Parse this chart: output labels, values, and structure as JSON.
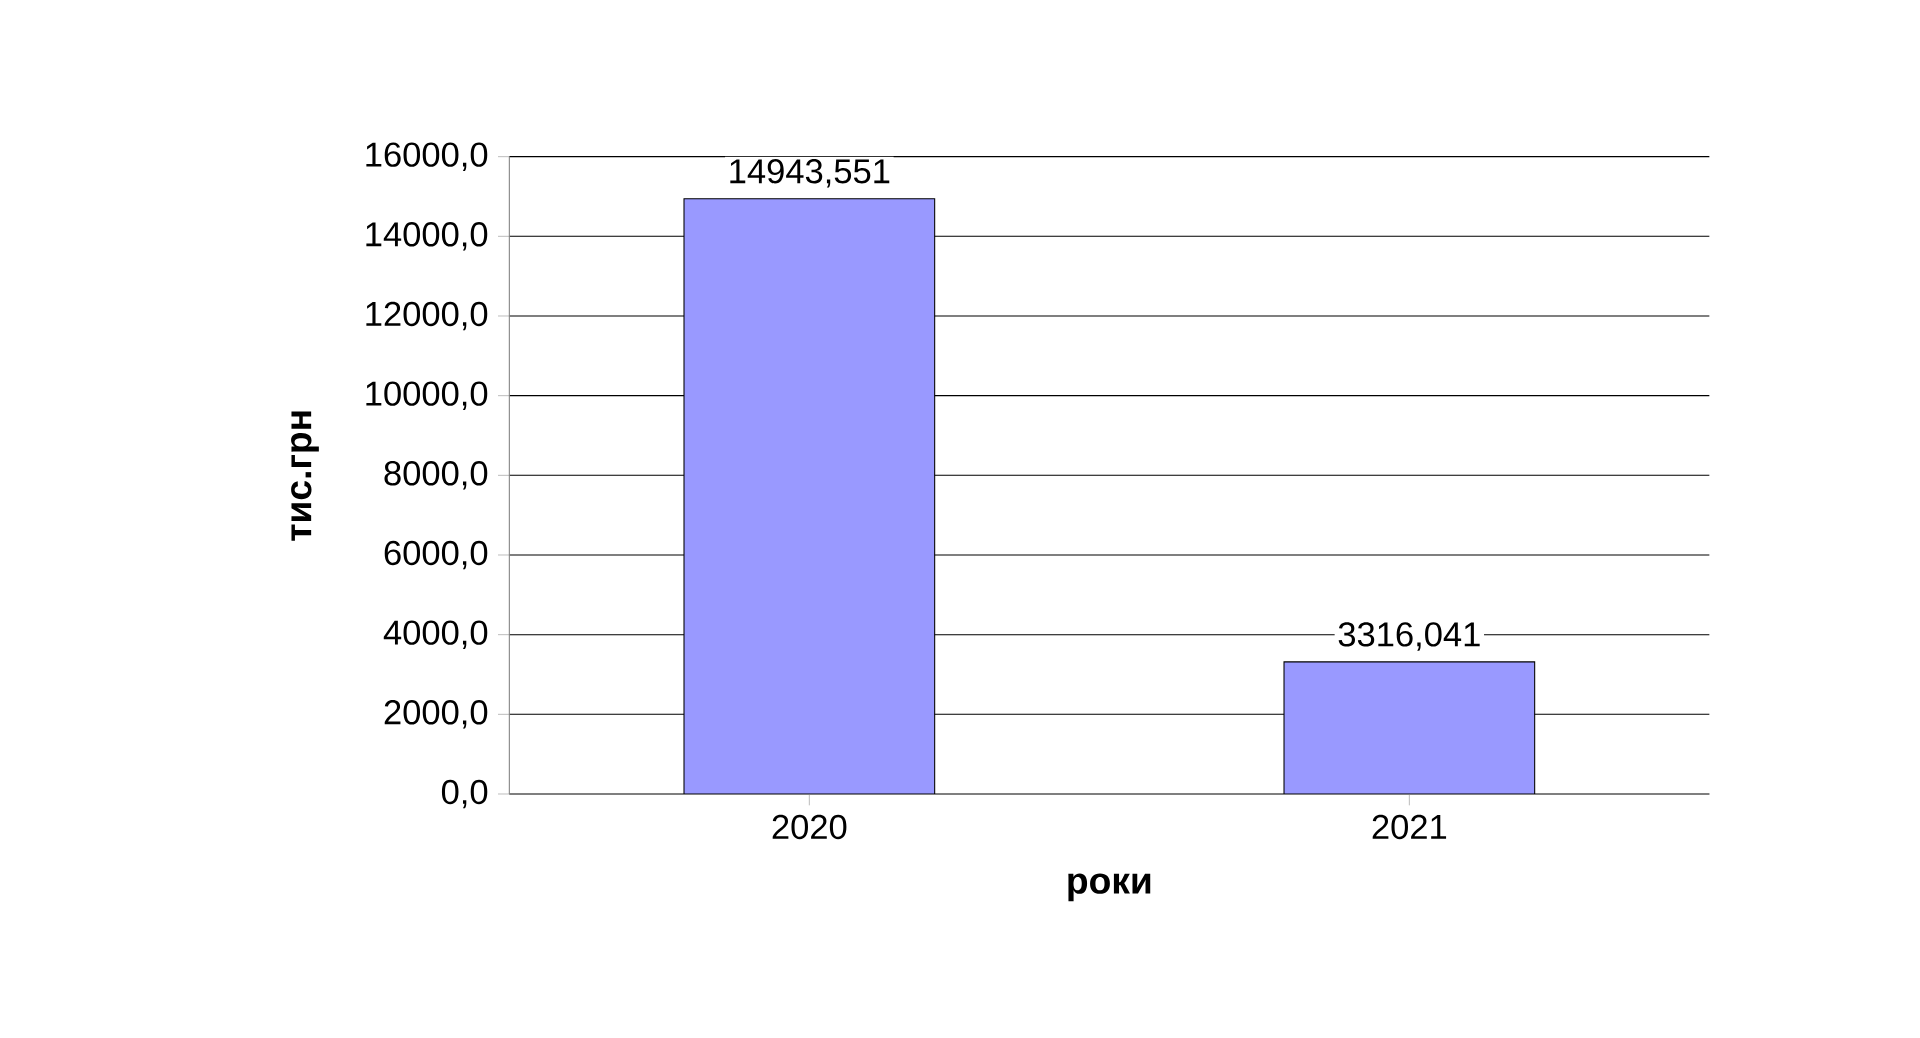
{
  "chart_data": {
    "type": "bar",
    "xlabel": "роки",
    "ylabel": "тис.грн",
    "categories": [
      "2020",
      "2021"
    ],
    "values": [
      14943.551,
      3316.041
    ],
    "value_labels": [
      "14943,551",
      "3316,041"
    ],
    "color": "#9999ff",
    "ylim": [
      0,
      16000
    ],
    "yticks": [
      {
        "value": 0,
        "label": "0,0"
      },
      {
        "value": 2000,
        "label": "2000,0"
      },
      {
        "value": 4000,
        "label": "4000,0"
      },
      {
        "value": 6000,
        "label": "6000,0"
      },
      {
        "value": 8000,
        "label": "8000,0"
      },
      {
        "value": 10000,
        "label": "10000,0"
      },
      {
        "value": 12000,
        "label": "12000,0"
      },
      {
        "value": 14000,
        "label": "14000,0"
      },
      {
        "value": 16000,
        "label": "16000,0"
      }
    ],
    "grid": "y"
  }
}
